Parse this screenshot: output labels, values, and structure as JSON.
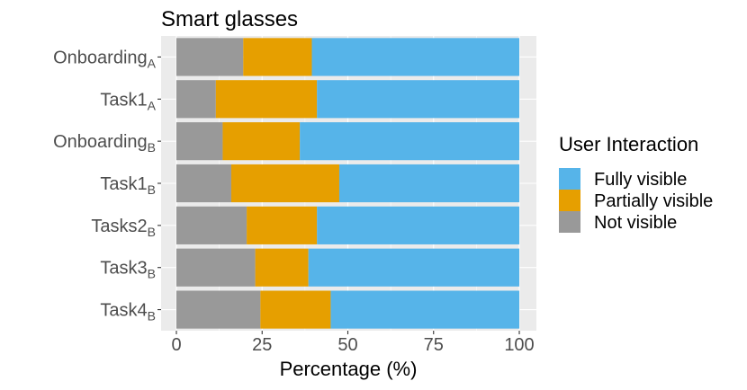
{
  "chart_data": {
    "type": "bar",
    "orientation": "horizontal",
    "stacked": true,
    "title": "Smart glasses",
    "xlabel": "Percentage (%)",
    "ylabel": "",
    "xlim": [
      0,
      100
    ],
    "xticks": [
      0,
      25,
      50,
      75,
      100
    ],
    "grid": true,
    "legend_position": "right",
    "legend_title": "User Interaction",
    "categories": [
      {
        "base": "Onboarding",
        "sub": "A"
      },
      {
        "base": "Task1",
        "sub": "A"
      },
      {
        "base": "Onboarding",
        "sub": "B"
      },
      {
        "base": "Task1",
        "sub": "B"
      },
      {
        "base": "Tasks2",
        "sub": "B"
      },
      {
        "base": "Task3",
        "sub": "B"
      },
      {
        "base": "Task4",
        "sub": "B"
      }
    ],
    "series": [
      {
        "name": "Not visible",
        "color": "#999999",
        "values": [
          19.5,
          11.5,
          13.5,
          16.0,
          20.5,
          23.0,
          24.5
        ]
      },
      {
        "name": "Partially visible",
        "color": "#E69F00",
        "values": [
          20.0,
          29.5,
          22.5,
          31.5,
          20.5,
          15.5,
          20.5
        ]
      },
      {
        "name": "Fully visible",
        "color": "#56B4E9",
        "values": [
          60.5,
          59.0,
          64.0,
          52.5,
          59.0,
          61.5,
          55.0
        ]
      }
    ],
    "legend_order": [
      "Fully visible",
      "Partially visible",
      "Not visible"
    ],
    "panel_background": "#EBEBEB",
    "grid_color": "#FFFFFF"
  }
}
